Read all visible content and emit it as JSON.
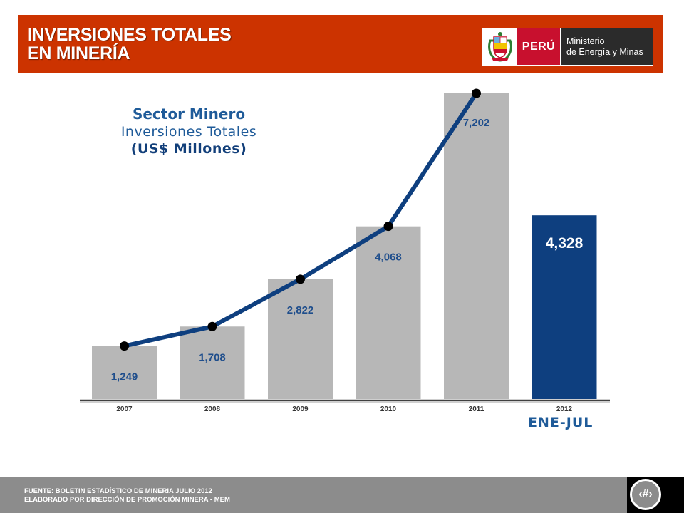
{
  "header": {
    "title_line1": "INVERSIONES TOTALES",
    "title_line2": "EN MINERÍA",
    "logo_country": "PERÚ",
    "logo_ministry_line1": "Ministerio",
    "logo_ministry_line2": "de Energía y Minas"
  },
  "chart_data": {
    "type": "bar",
    "title_line1": "Sector Minero",
    "title_line2": "Inversiones  Totales",
    "title_line3": "(US$ Millones)",
    "categories": [
      "2007",
      "2008",
      "2009",
      "2010",
      "2011",
      "2012"
    ],
    "values": [
      1249,
      1708,
      2822,
      4068,
      7202,
      4328
    ],
    "value_labels": [
      "1,249",
      "1,708",
      "2,822",
      "4,068",
      "7,202",
      "4,328"
    ],
    "bar_colors": [
      "#b7b7b7",
      "#b7b7b7",
      "#b7b7b7",
      "#b7b7b7",
      "#b7b7b7",
      "#0e3f7f"
    ],
    "trend_line": {
      "categories": [
        "2007",
        "2008",
        "2009",
        "2010",
        "2011"
      ],
      "values": [
        1249,
        1708,
        2822,
        4068,
        7202
      ],
      "color": "#0e3f7f"
    },
    "last_category_note": "ENE-JUL",
    "ylim": [
      0,
      7202
    ],
    "grid": false,
    "legend": "none"
  },
  "footer": {
    "line1": "FUENTE: BOLETIN ESTADÍSTICO DE MINERIA JULIO 2012",
    "line2": "ELABORADO POR DIRECCIÓN DE PROMOCIÓN MINERA  - MEM",
    "page_glyph": "‹#›"
  }
}
